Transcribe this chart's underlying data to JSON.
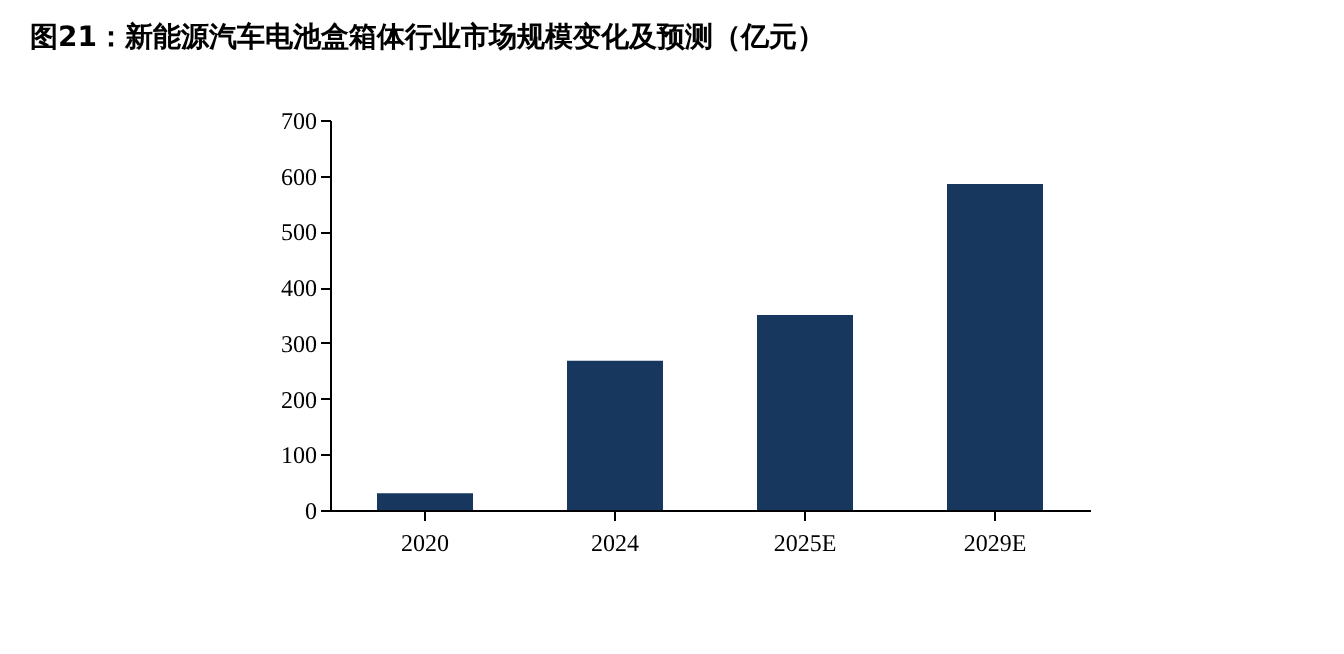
{
  "chart_data": {
    "type": "bar",
    "title": "图21：新能源汽车电池盒箱体行业市场规模变化及预测（亿元）",
    "categories": [
      "2020",
      "2024",
      "2025E",
      "2029E"
    ],
    "values": [
      30,
      268,
      350,
      585
    ],
    "color": "#17375e",
    "ylim": [
      0,
      700
    ],
    "yticks": [
      0,
      100,
      200,
      300,
      400,
      500,
      600,
      700
    ],
    "grid": false
  }
}
